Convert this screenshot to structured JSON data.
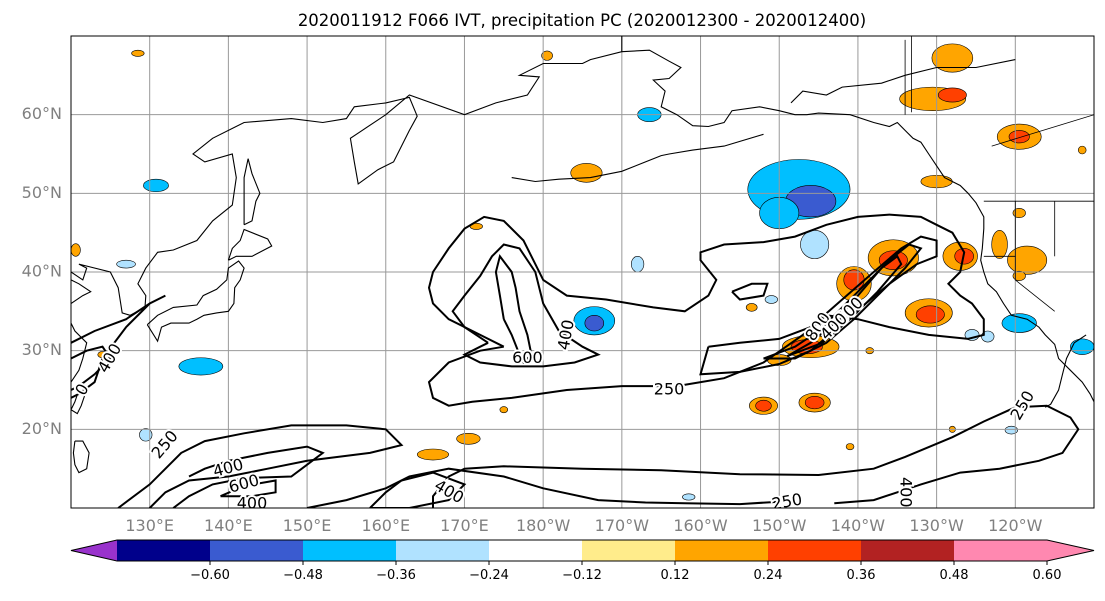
{
  "chart_data": {
    "type": "heatmap",
    "title": "2020011912 F066 IVT, precipitation PC (2020012300 - 2020012400)",
    "map": {
      "projection": "PlateCarree",
      "lon_range": [
        120,
        250
      ],
      "lat_range": [
        10,
        70
      ],
      "gridlines": true,
      "lat_ticks": [
        20,
        30,
        40,
        50,
        60
      ],
      "lat_tick_labels": [
        "20°N",
        "30°N",
        "40°N",
        "50°N",
        "60°N"
      ],
      "lon_ticks": [
        130,
        140,
        150,
        160,
        170,
        180,
        190,
        200,
        210,
        220,
        230,
        240
      ],
      "lon_tick_labels": [
        "130°E",
        "140°E",
        "150°E",
        "160°E",
        "170°E",
        "180°W",
        "170°W",
        "160°W",
        "150°W",
        "140°W",
        "130°W",
        "120°W"
      ]
    },
    "colorbar": {
      "orientation": "horizontal",
      "extend": "both",
      "bounds": [
        -0.6,
        -0.48,
        -0.36,
        -0.24,
        -0.12,
        0.12,
        0.24,
        0.36,
        0.48,
        0.6
      ],
      "tick_labels": [
        "−0.60",
        "−0.48",
        "−0.36",
        "−0.24",
        "−0.12",
        "0.12",
        "0.24",
        "0.36",
        "0.48",
        "0.60"
      ],
      "colors": [
        "#9932cc",
        "#00008b",
        "#3a5bd0",
        "#00bfff",
        "#b0e2ff",
        "#ffffff",
        "#ffec8b",
        "#ffa500",
        "#ff4000",
        "#b22222",
        "#ff88b0"
      ]
    },
    "ivt_contours": {
      "levels": [
        250,
        400,
        600,
        800
      ],
      "labels": [
        {
          "text": "250",
          "lon": 196,
          "lat": 25,
          "rot": 0
        },
        {
          "text": "400",
          "lon": 183,
          "lat": 32,
          "rot": -80
        },
        {
          "text": "600",
          "lon": 178,
          "lat": 29,
          "rot": 0
        },
        {
          "text": "800",
          "lon": 215,
          "lat": 33,
          "rot": -55
        },
        {
          "text": "600",
          "lon": 219,
          "lat": 35,
          "rot": -45
        },
        {
          "text": "400",
          "lon": 217,
          "lat": 33,
          "rot": -45
        },
        {
          "text": "400",
          "lon": 125,
          "lat": 29,
          "rot": -60
        },
        {
          "text": "250",
          "lon": 132,
          "lat": 18,
          "rot": -50
        },
        {
          "text": "400",
          "lon": 140,
          "lat": 15,
          "rot": -15
        },
        {
          "text": "600",
          "lon": 142,
          "lat": 13,
          "rot": -15
        },
        {
          "text": "400",
          "lon": 143,
          "lat": 10.5,
          "rot": 0
        },
        {
          "text": "400",
          "lon": 168,
          "lat": 12,
          "rot": 30
        },
        {
          "text": "250",
          "lon": 211,
          "lat": 10.7,
          "rot": -10
        },
        {
          "text": "400",
          "lon": 226,
          "lat": 12,
          "rot": 90
        },
        {
          "text": "250",
          "lon": 241,
          "lat": 23,
          "rot": -60
        },
        {
          "text": "0",
          "lon": 121.5,
          "lat": 25,
          "rot": -60
        }
      ]
    },
    "precip_pc_regions": [
      {
        "value": -0.36,
        "lon": 212.5,
        "lat": 50.5,
        "rx": 6.5,
        "ry": 3.8
      },
      {
        "value": -0.48,
        "lon": 214,
        "lat": 49,
        "rx": 3.2,
        "ry": 2.0
      },
      {
        "value": -0.36,
        "lon": 210,
        "lat": 47.5,
        "rx": 2.5,
        "ry": 2.0
      },
      {
        "value": -0.24,
        "lon": 214.5,
        "lat": 43.5,
        "rx": 1.8,
        "ry": 1.8
      },
      {
        "value": -0.36,
        "lon": 186.5,
        "lat": 33.8,
        "rx": 2.6,
        "ry": 1.8
      },
      {
        "value": -0.48,
        "lon": 186.5,
        "lat": 33.5,
        "rx": 1.2,
        "ry": 1.0
      },
      {
        "value": -0.36,
        "lon": 136.5,
        "lat": 28.0,
        "rx": 2.8,
        "ry": 1.1
      },
      {
        "value": -0.36,
        "lon": 240.5,
        "lat": 33.5,
        "rx": 2.2,
        "ry": 1.2
      },
      {
        "value": -0.36,
        "lon": 248.5,
        "lat": 30.5,
        "rx": 1.5,
        "ry": 1.0
      },
      {
        "value": -0.36,
        "lon": 130.8,
        "lat": 51.0,
        "rx": 1.6,
        "ry": 0.8
      },
      {
        "value": -0.36,
        "lon": 193.5,
        "lat": 60.0,
        "rx": 1.5,
        "ry": 0.9
      },
      {
        "value": -0.24,
        "lon": 127,
        "lat": 41.0,
        "rx": 1.2,
        "ry": 0.5
      },
      {
        "value": -0.24,
        "lon": 192,
        "lat": 41.0,
        "rx": 0.8,
        "ry": 1.0
      },
      {
        "value": -0.24,
        "lon": 129.5,
        "lat": 19.3,
        "rx": 0.8,
        "ry": 0.8
      },
      {
        "value": -0.24,
        "lon": 234.5,
        "lat": 32.0,
        "rx": 0.9,
        "ry": 0.7
      },
      {
        "value": -0.24,
        "lon": 236.5,
        "lat": 31.8,
        "rx": 0.8,
        "ry": 0.7
      },
      {
        "value": -0.24,
        "lon": 239.5,
        "lat": 19.9,
        "rx": 0.8,
        "ry": 0.5
      },
      {
        "value": -0.24,
        "lon": 198.5,
        "lat": 11.4,
        "rx": 0.8,
        "ry": 0.4
      },
      {
        "value": -0.24,
        "lon": 209,
        "lat": 36.5,
        "rx": 0.8,
        "ry": 0.5
      },
      {
        "value": 0.24,
        "lon": 185.5,
        "lat": 52.6,
        "rx": 2.0,
        "ry": 1.2
      },
      {
        "value": 0.24,
        "lon": 232,
        "lat": 67.2,
        "rx": 2.6,
        "ry": 1.8
      },
      {
        "value": 0.24,
        "lon": 229.5,
        "lat": 62.0,
        "rx": 4.2,
        "ry": 1.5
      },
      {
        "value": 0.36,
        "lon": 232,
        "lat": 62.5,
        "rx": 1.8,
        "ry": 0.9
      },
      {
        "value": 0.24,
        "lon": 240.5,
        "lat": 57.2,
        "rx": 2.8,
        "ry": 1.6
      },
      {
        "value": 0.36,
        "lon": 240.5,
        "lat": 57.2,
        "rx": 1.3,
        "ry": 0.8
      },
      {
        "value": 0.24,
        "lon": 230,
        "lat": 51.5,
        "rx": 2.0,
        "ry": 0.8
      },
      {
        "value": 0.24,
        "lon": 241.5,
        "lat": 41.5,
        "rx": 2.5,
        "ry": 1.8
      },
      {
        "value": 0.24,
        "lon": 238,
        "lat": 43.5,
        "rx": 1.0,
        "ry": 1.8
      },
      {
        "value": 0.24,
        "lon": 224.5,
        "lat": 41.8,
        "rx": 3.2,
        "ry": 2.3
      },
      {
        "value": 0.36,
        "lon": 224.5,
        "lat": 41.5,
        "rx": 1.8,
        "ry": 1.2
      },
      {
        "value": 0.24,
        "lon": 233,
        "lat": 42.0,
        "rx": 2.2,
        "ry": 1.8
      },
      {
        "value": 0.36,
        "lon": 233.5,
        "lat": 42.0,
        "rx": 1.2,
        "ry": 1.0
      },
      {
        "value": 0.24,
        "lon": 219.5,
        "lat": 38.5,
        "rx": 2.2,
        "ry": 2.2
      },
      {
        "value": 0.36,
        "lon": 219.5,
        "lat": 39.0,
        "rx": 1.3,
        "ry": 1.3
      },
      {
        "value": 0.24,
        "lon": 229,
        "lat": 34.8,
        "rx": 3.0,
        "ry": 1.8
      },
      {
        "value": 0.36,
        "lon": 229.2,
        "lat": 34.6,
        "rx": 1.8,
        "ry": 1.1
      },
      {
        "value": 0.24,
        "lon": 214,
        "lat": 30.5,
        "rx": 3.6,
        "ry": 1.4
      },
      {
        "value": 0.36,
        "lon": 213.5,
        "lat": 30.5,
        "rx": 2.0,
        "ry": 0.9
      },
      {
        "value": 0.24,
        "lon": 210,
        "lat": 28.8,
        "rx": 1.5,
        "ry": 0.7
      },
      {
        "value": 0.24,
        "lon": 214.5,
        "lat": 23.4,
        "rx": 2.0,
        "ry": 1.2
      },
      {
        "value": 0.36,
        "lon": 214.5,
        "lat": 23.4,
        "rx": 1.2,
        "ry": 0.8
      },
      {
        "value": 0.24,
        "lon": 208,
        "lat": 23.0,
        "rx": 1.8,
        "ry": 1.1
      },
      {
        "value": 0.36,
        "lon": 208,
        "lat": 23.0,
        "rx": 1.0,
        "ry": 0.7
      },
      {
        "value": 0.24,
        "lon": 166,
        "lat": 16.8,
        "rx": 2.0,
        "ry": 0.7
      },
      {
        "value": 0.24,
        "lon": 170.5,
        "lat": 18.8,
        "rx": 1.5,
        "ry": 0.7
      },
      {
        "value": 0.24,
        "lon": 128.5,
        "lat": 67.8,
        "rx": 0.8,
        "ry": 0.4
      },
      {
        "value": 0.24,
        "lon": 180.5,
        "lat": 67.5,
        "rx": 0.7,
        "ry": 0.6
      },
      {
        "value": 0.24,
        "lon": 171.5,
        "lat": 45.8,
        "rx": 0.8,
        "ry": 0.4
      },
      {
        "value": 0.24,
        "lon": 120.6,
        "lat": 42.8,
        "rx": 0.6,
        "ry": 0.8
      },
      {
        "value": 0.24,
        "lon": 124,
        "lat": 29.5,
        "rx": 0.6,
        "ry": 0.4
      },
      {
        "value": 0.24,
        "lon": 221.5,
        "lat": 30.0,
        "rx": 0.5,
        "ry": 0.4
      },
      {
        "value": 0.24,
        "lon": 232,
        "lat": 20.0,
        "rx": 0.4,
        "ry": 0.4
      },
      {
        "value": 0.24,
        "lon": 206.5,
        "lat": 35.5,
        "rx": 0.7,
        "ry": 0.5
      },
      {
        "value": 0.24,
        "lon": 248.5,
        "lat": 55.5,
        "rx": 0.5,
        "ry": 0.5
      },
      {
        "value": 0.24,
        "lon": 240.5,
        "lat": 47.5,
        "rx": 0.8,
        "ry": 0.6
      },
      {
        "value": 0.24,
        "lon": 240.5,
        "lat": 39.5,
        "rx": 0.8,
        "ry": 0.6
      },
      {
        "value": 0.24,
        "lon": 219.0,
        "lat": 17.8,
        "rx": 0.5,
        "ry": 0.4
      },
      {
        "value": 0.24,
        "lon": 175,
        "lat": 22.5,
        "rx": 0.5,
        "ry": 0.4
      }
    ]
  }
}
